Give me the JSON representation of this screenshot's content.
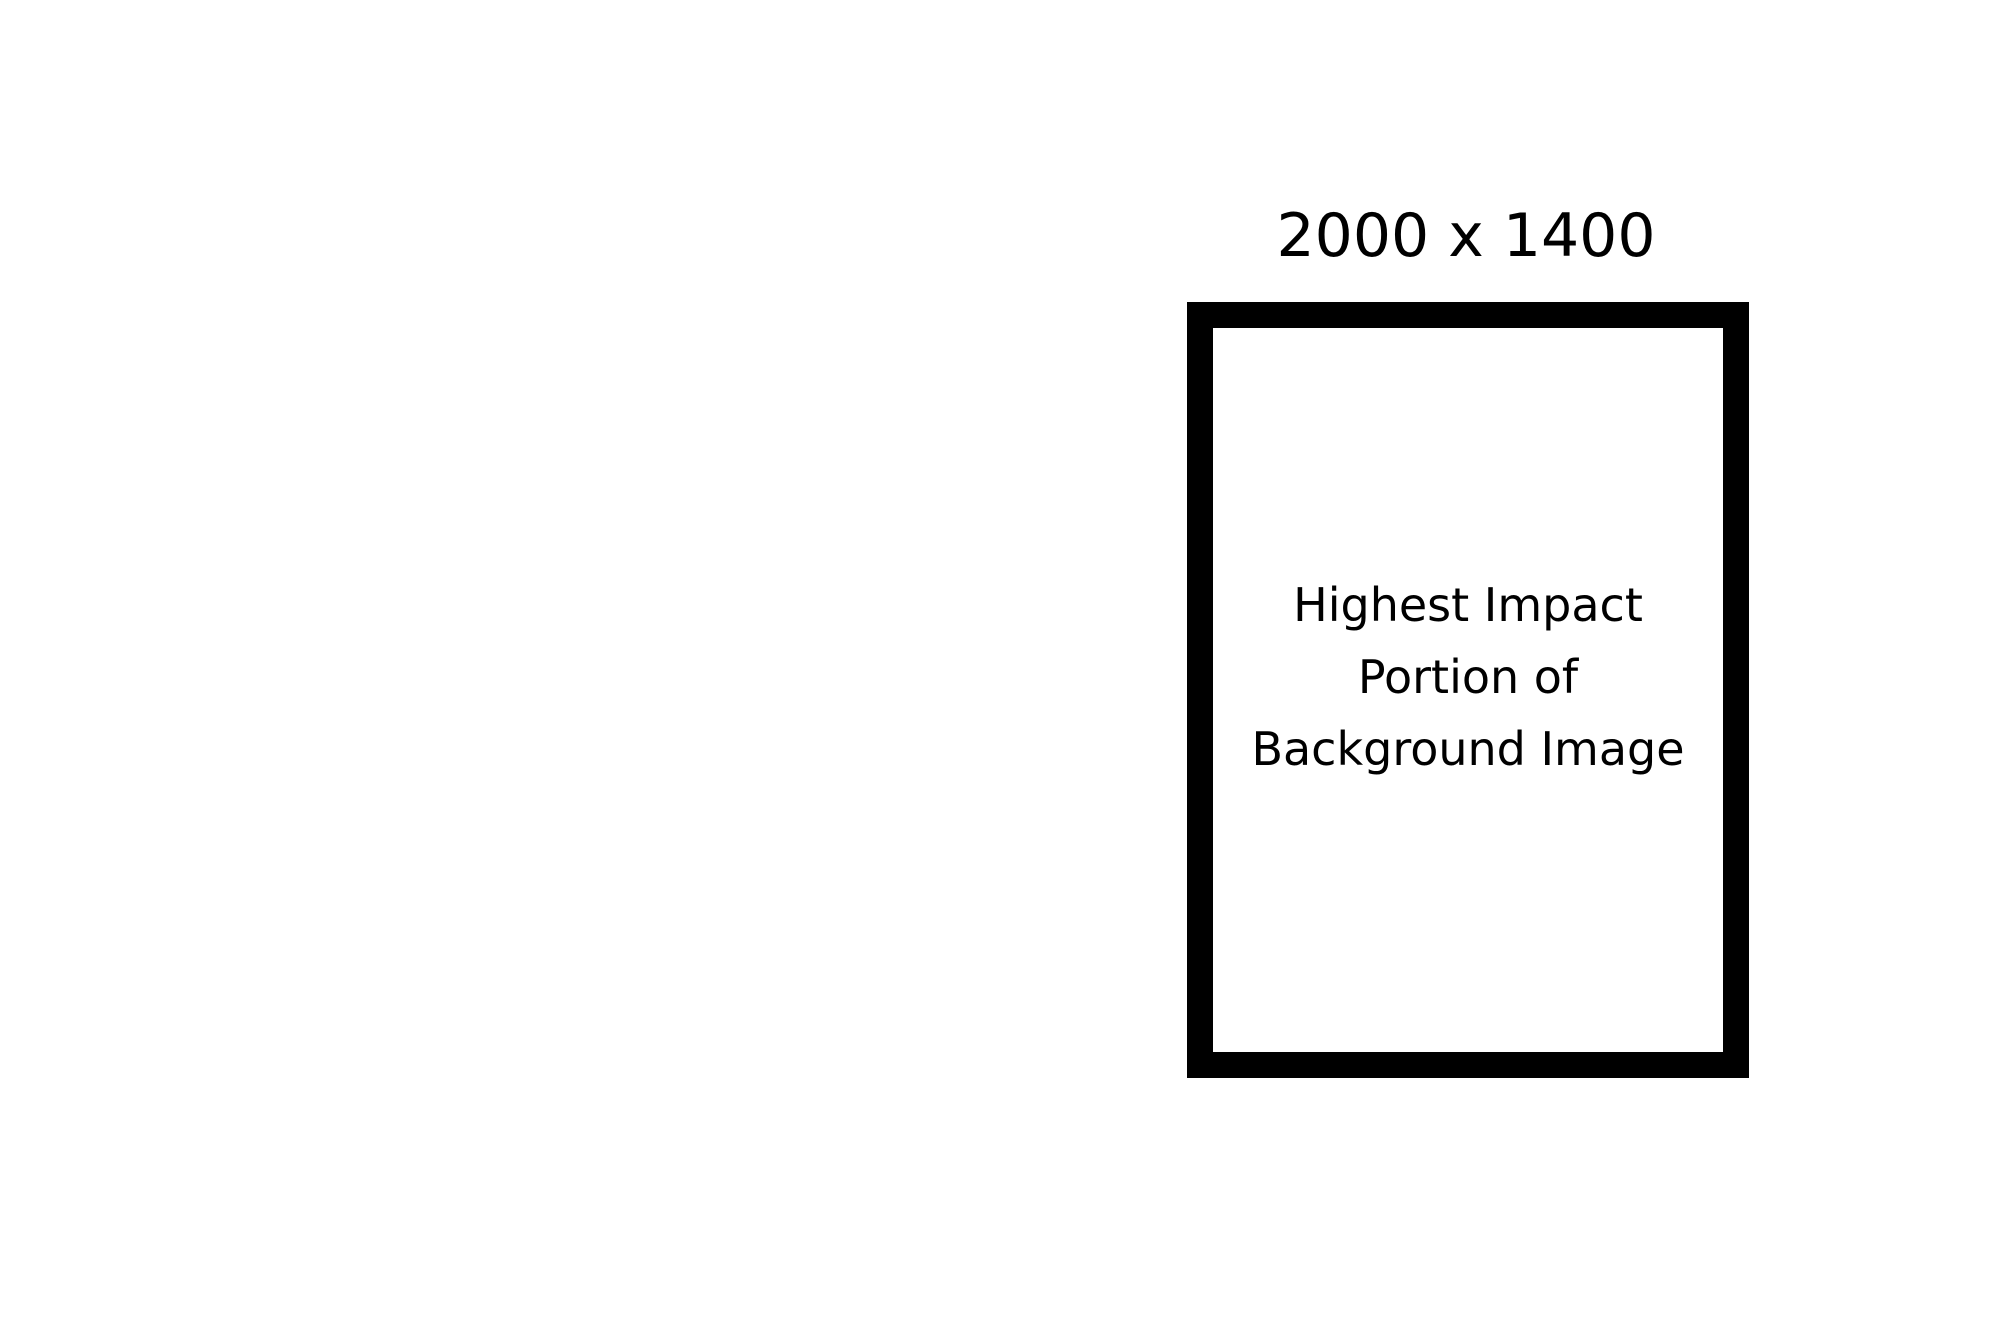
{
  "dimensions_label": "2000 x 1400",
  "frame": {
    "lines": [
      "Highest Impact",
      "Portion of",
      "Background Image"
    ]
  },
  "colors": {
    "background": "#ffffff",
    "frame_border": "#000000",
    "text": "#000000"
  }
}
